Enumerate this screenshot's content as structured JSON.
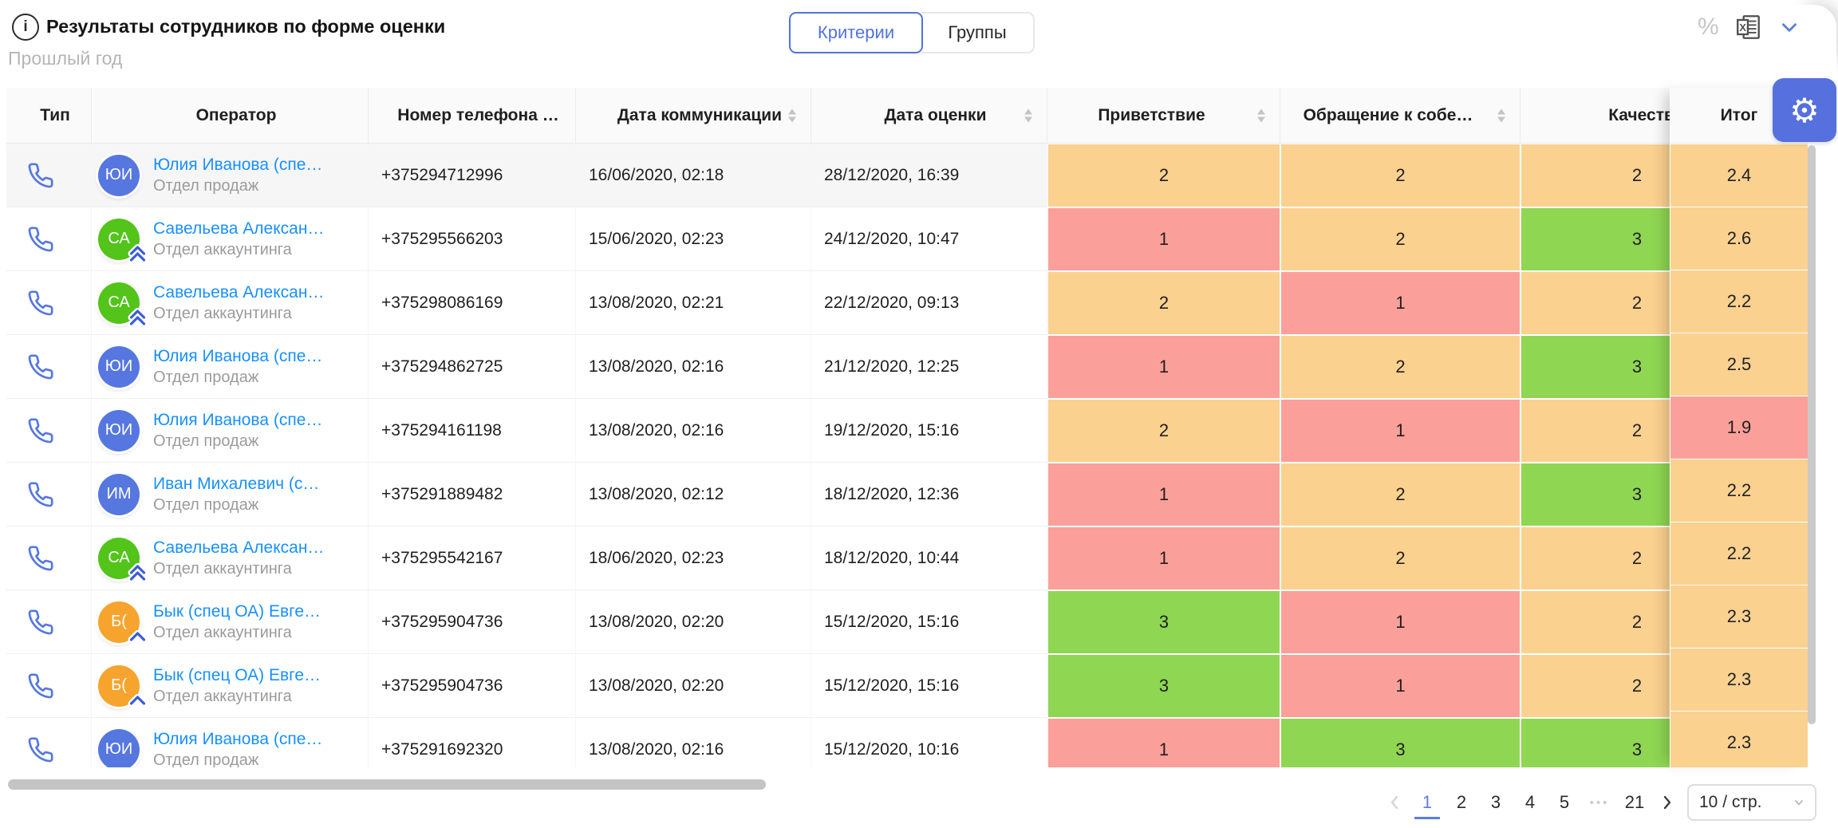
{
  "page": {
    "title": "Результаты сотрудников по форме оценки",
    "subtitle": "Прошлый год"
  },
  "view_toggle": {
    "options": [
      {
        "label": "Критерии",
        "active": true
      },
      {
        "label": "Группы",
        "active": false
      }
    ]
  },
  "toolbar": {
    "percent_label": "%"
  },
  "colors": {
    "accent": "#5273dc",
    "link": "#1890ff",
    "score_orange": "#fbd190",
    "score_red": "#fb9f9a",
    "score_green": "#8fd653",
    "avatar_blue": "#5677e0",
    "avatar_green": "#52c41a",
    "avatar_orange": "#f6a42d",
    "badge_blue": "#3d5cd7"
  },
  "table": {
    "columns": [
      {
        "key": "type",
        "label": "Тип",
        "sorter": false,
        "align": "left"
      },
      {
        "key": "operator",
        "label": "Оператор",
        "sorter": false,
        "align": "left"
      },
      {
        "key": "phone",
        "label": "Номер телефона …",
        "sorter": false,
        "align": "left"
      },
      {
        "key": "comm_date",
        "label": "Дата коммуникации",
        "sorter": true,
        "align": "left"
      },
      {
        "key": "eval_date",
        "label": "Дата оценки",
        "sorter": true,
        "align": "left"
      },
      {
        "key": "greeting",
        "label": "Приветствие",
        "sorter": true,
        "align": "center"
      },
      {
        "key": "address",
        "label": "Обращение к собе…",
        "sorter": true,
        "align": "center"
      },
      {
        "key": "quality",
        "label": "Качество ре",
        "sorter": false,
        "align": "left-wide"
      }
    ],
    "fixed_column": {
      "key": "total",
      "label": "Итог"
    },
    "rows": [
      {
        "type": "call",
        "avatar": {
          "initials": "ЮИ",
          "color": "avatar_blue",
          "badge": null
        },
        "name": "Юлия Иванова (спе…",
        "dept": "Отдел продаж",
        "phone": "+375294712996",
        "comm_date": "16/06/2020, 02:18",
        "eval_date": "28/12/2020, 16:39",
        "greeting": {
          "value": "2",
          "level": "score_orange"
        },
        "address": {
          "value": "2",
          "level": "score_orange"
        },
        "quality": {
          "value": "2",
          "level": "score_orange"
        },
        "total": {
          "value": "2.4",
          "level": "score_orange"
        },
        "highlighted": true
      },
      {
        "type": "call",
        "avatar": {
          "initials": "СА",
          "color": "avatar_green",
          "badge": "double-up"
        },
        "name": "Савельева Алексан…",
        "dept": "Отдел аккаунтинга",
        "phone": "+375295566203",
        "comm_date": "15/06/2020, 02:23",
        "eval_date": "24/12/2020, 10:47",
        "greeting": {
          "value": "1",
          "level": "score_red"
        },
        "address": {
          "value": "2",
          "level": "score_orange"
        },
        "quality": {
          "value": "3",
          "level": "score_green"
        },
        "total": {
          "value": "2.6",
          "level": "score_orange"
        },
        "highlighted": false
      },
      {
        "type": "call",
        "avatar": {
          "initials": "СА",
          "color": "avatar_green",
          "badge": "double-up"
        },
        "name": "Савельева Алексан…",
        "dept": "Отдел аккаунтинга",
        "phone": "+375298086169",
        "comm_date": "13/08/2020, 02:21",
        "eval_date": "22/12/2020, 09:13",
        "greeting": {
          "value": "2",
          "level": "score_orange"
        },
        "address": {
          "value": "1",
          "level": "score_red"
        },
        "quality": {
          "value": "2",
          "level": "score_orange"
        },
        "total": {
          "value": "2.2",
          "level": "score_orange"
        },
        "highlighted": false
      },
      {
        "type": "call",
        "avatar": {
          "initials": "ЮИ",
          "color": "avatar_blue",
          "badge": null
        },
        "name": "Юлия Иванова (спе…",
        "dept": "Отдел продаж",
        "phone": "+375294862725",
        "comm_date": "13/08/2020, 02:16",
        "eval_date": "21/12/2020, 12:25",
        "greeting": {
          "value": "1",
          "level": "score_red"
        },
        "address": {
          "value": "2",
          "level": "score_orange"
        },
        "quality": {
          "value": "3",
          "level": "score_green"
        },
        "total": {
          "value": "2.5",
          "level": "score_orange"
        },
        "highlighted": false
      },
      {
        "type": "call",
        "avatar": {
          "initials": "ЮИ",
          "color": "avatar_blue",
          "badge": null
        },
        "name": "Юлия Иванова (спе…",
        "dept": "Отдел продаж",
        "phone": "+375294161198",
        "comm_date": "13/08/2020, 02:16",
        "eval_date": "19/12/2020, 15:16",
        "greeting": {
          "value": "2",
          "level": "score_orange"
        },
        "address": {
          "value": "1",
          "level": "score_red"
        },
        "quality": {
          "value": "2",
          "level": "score_orange"
        },
        "total": {
          "value": "1.9",
          "level": "score_red"
        },
        "highlighted": false
      },
      {
        "type": "call",
        "avatar": {
          "initials": "ИМ",
          "color": "avatar_blue",
          "badge": null
        },
        "name": "Иван Михалевич (с…",
        "dept": "Отдел продаж",
        "phone": "+375291889482",
        "comm_date": "13/08/2020, 02:12",
        "eval_date": "18/12/2020, 12:36",
        "greeting": {
          "value": "1",
          "level": "score_red"
        },
        "address": {
          "value": "2",
          "level": "score_orange"
        },
        "quality": {
          "value": "3",
          "level": "score_green"
        },
        "total": {
          "value": "2.2",
          "level": "score_orange"
        },
        "highlighted": false
      },
      {
        "type": "call",
        "avatar": {
          "initials": "СА",
          "color": "avatar_green",
          "badge": "double-up"
        },
        "name": "Савельева Алексан…",
        "dept": "Отдел аккаунтинга",
        "phone": "+375295542167",
        "comm_date": "18/06/2020, 02:23",
        "eval_date": "18/12/2020, 10:44",
        "greeting": {
          "value": "1",
          "level": "score_red"
        },
        "address": {
          "value": "2",
          "level": "score_orange"
        },
        "quality": {
          "value": "2",
          "level": "score_orange"
        },
        "total": {
          "value": "2.2",
          "level": "score_orange"
        },
        "highlighted": false
      },
      {
        "type": "call",
        "avatar": {
          "initials": "Б(",
          "color": "avatar_orange",
          "badge": "up"
        },
        "name": "Бык (спец ОА) Евге…",
        "dept": "Отдел аккаунтинга",
        "phone": "+375295904736",
        "comm_date": "13/08/2020, 02:20",
        "eval_date": "15/12/2020, 15:16",
        "greeting": {
          "value": "3",
          "level": "score_green"
        },
        "address": {
          "value": "1",
          "level": "score_red"
        },
        "quality": {
          "value": "2",
          "level": "score_orange"
        },
        "total": {
          "value": "2.3",
          "level": "score_orange"
        },
        "highlighted": false
      },
      {
        "type": "call",
        "avatar": {
          "initials": "Б(",
          "color": "avatar_orange",
          "badge": "up"
        },
        "name": "Бык (спец ОА) Евге…",
        "dept": "Отдел аккаунтинга",
        "phone": "+375295904736",
        "comm_date": "13/08/2020, 02:20",
        "eval_date": "15/12/2020, 15:16",
        "greeting": {
          "value": "3",
          "level": "score_green"
        },
        "address": {
          "value": "1",
          "level": "score_red"
        },
        "quality": {
          "value": "2",
          "level": "score_orange"
        },
        "total": {
          "value": "2.3",
          "level": "score_orange"
        },
        "highlighted": false
      },
      {
        "type": "call",
        "avatar": {
          "initials": "ЮИ",
          "color": "avatar_blue",
          "badge": null
        },
        "name": "Юлия Иванова (спе…",
        "dept": "Отдел продаж",
        "phone": "+375291692320",
        "comm_date": "13/08/2020, 02:16",
        "eval_date": "15/12/2020, 10:16",
        "greeting": {
          "value": "1",
          "level": "score_red"
        },
        "address": {
          "value": "3",
          "level": "score_green"
        },
        "quality": {
          "value": "3",
          "level": "score_green"
        },
        "total": {
          "value": "2.3",
          "level": "score_orange"
        },
        "highlighted": false
      }
    ]
  },
  "pagination": {
    "pages": [
      "1",
      "2",
      "3",
      "4",
      "5"
    ],
    "ellipsis": "•••",
    "last_page": "21",
    "active_page": "1",
    "page_size": "10 / стр."
  }
}
